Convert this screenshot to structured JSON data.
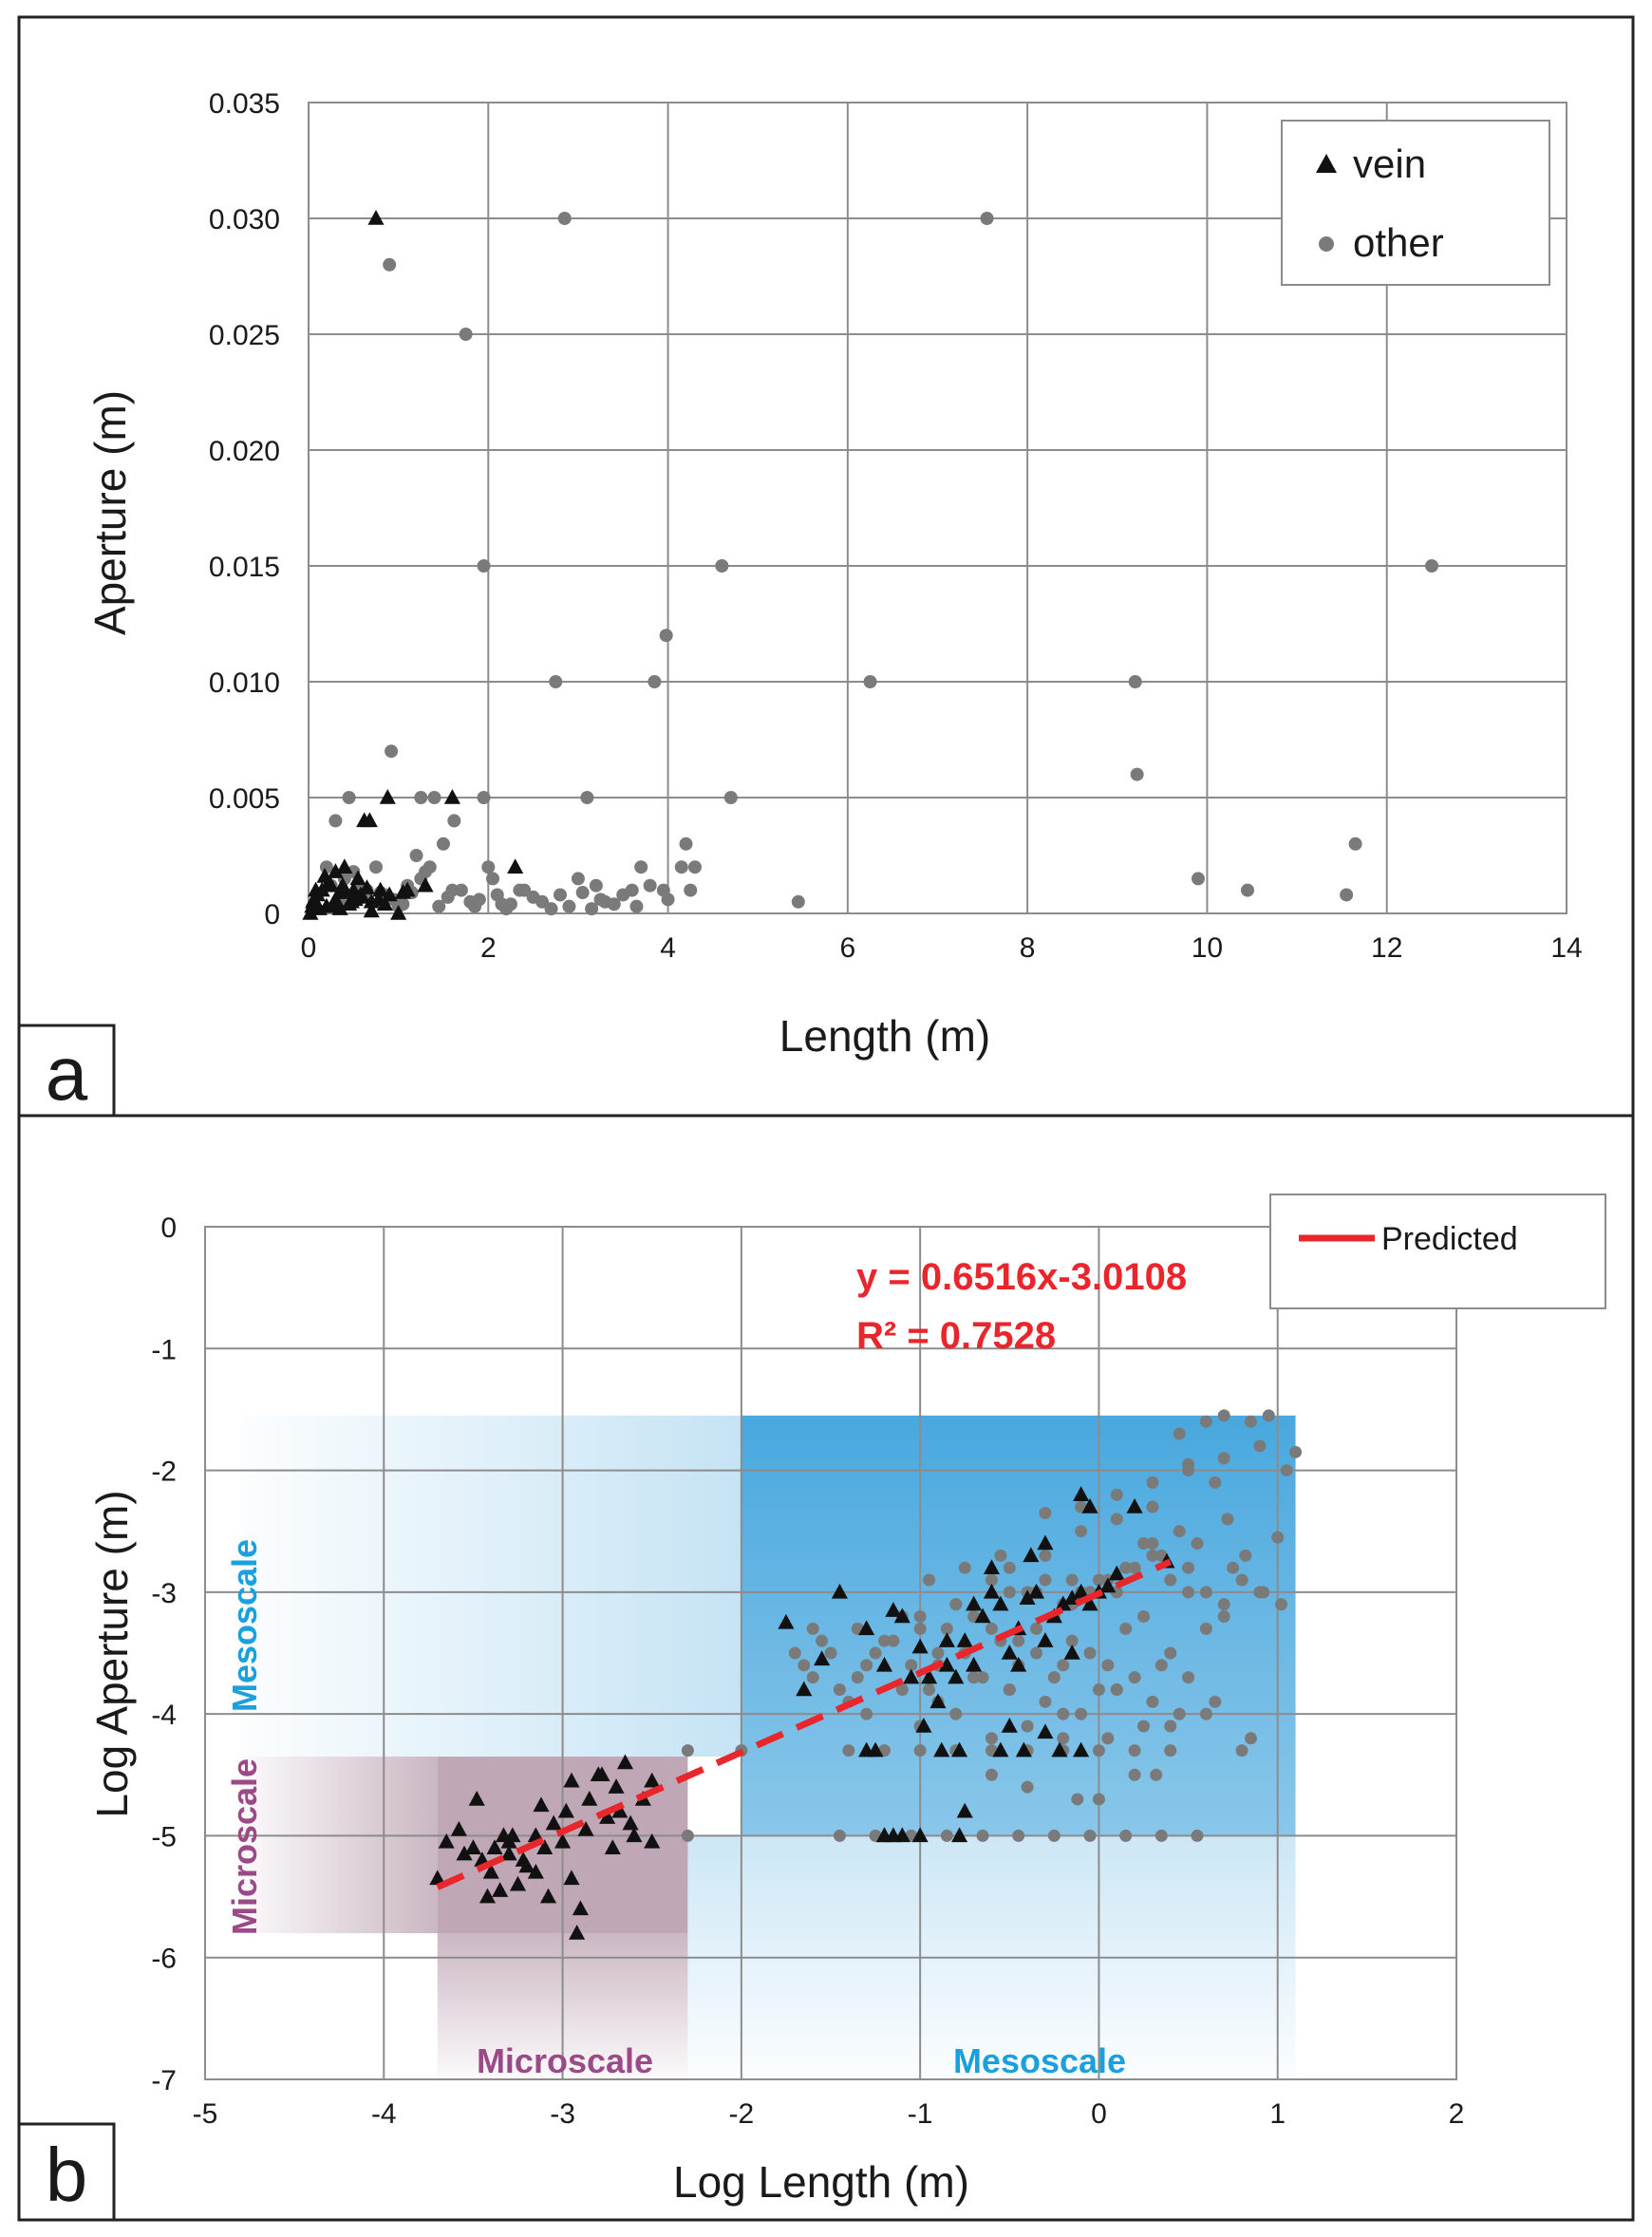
{
  "chart_data": [
    {
      "type": "scatter",
      "panel_label": "a",
      "title": "",
      "xlabel": "Length (m)",
      "ylabel": "Aperture (m)",
      "xlim": [
        0,
        14
      ],
      "ylim": [
        0,
        0.035
      ],
      "xticks": [
        "0",
        "2",
        "4",
        "6",
        "8",
        "10",
        "12",
        "14"
      ],
      "yticks": [
        "0",
        "0.005",
        "0.010",
        "0.015",
        "0.020",
        "0.025",
        "0.030",
        "0.035"
      ],
      "grid": true,
      "legend_position": "top-right",
      "series": [
        {
          "name": "vein",
          "marker": "triangle",
          "color": "#111111",
          "x": [
            0.75,
            0.88,
            0.62,
            0.68,
            1.6,
            2.3,
            0.05,
            0.1,
            0.15,
            0.2,
            0.25,
            0.3,
            0.35,
            0.4,
            0.45,
            0.5,
            0.55,
            0.6,
            0.65,
            0.7,
            0.8,
            0.9,
            1.0,
            0.12,
            0.22,
            0.32,
            0.42,
            0.52,
            0.18,
            0.28,
            0.38,
            0.48,
            0.58,
            0.08,
            0.78,
            1.1,
            1.3,
            0.3,
            0.85,
            1.05,
            0.02,
            0.04,
            0.06,
            0.35,
            0.7
          ],
          "y": [
            0.03,
            0.005,
            0.004,
            0.004,
            0.005,
            0.002,
            0.0005,
            0.0008,
            0.001,
            0.0003,
            0.0012,
            0.0006,
            0.0009,
            0.002,
            0.0004,
            0.001,
            0.0015,
            0.0007,
            0.0011,
            0.0005,
            0.001,
            0.0008,
            0.0,
            0.0002,
            0.0013,
            0.0004,
            0.0009,
            0.0006,
            0.0016,
            0.0003,
            0.0012,
            0.0005,
            0.0008,
            0.001,
            0.0006,
            0.001,
            0.0012,
            0.0018,
            0.0004,
            0.0009,
            0.0,
            0.0003,
            0.0006,
            0.0002,
            0.0001
          ]
        },
        {
          "name": "other",
          "marker": "circle",
          "color": "#7a7a7a",
          "x": [
            0.9,
            1.75,
            2.85,
            7.55,
            1.95,
            4.6,
            3.98,
            2.75,
            3.85,
            6.25,
            9.2,
            9.22,
            12.5,
            0.92,
            0.45,
            1.25,
            1.4,
            1.95,
            3.1,
            4.7,
            1.62,
            0.3,
            11.65,
            4.2,
            4.3,
            4.15,
            3.95,
            9.9,
            10.45,
            11.55,
            5.45,
            3.7,
            3.6,
            3.3,
            3.2,
            3.0,
            2.8,
            2.6,
            2.4,
            2.2,
            2.1,
            2.0,
            1.85,
            1.5,
            1.3,
            1.2,
            1.1,
            0.95,
            1.05,
            1.15,
            1.35,
            1.45,
            1.55,
            1.7,
            1.8,
            2.05,
            2.25,
            2.35,
            2.5,
            2.7,
            2.9,
            3.05,
            3.15,
            3.25,
            3.4,
            3.5,
            3.65,
            3.8,
            4.0,
            4.25,
            0.2,
            0.4,
            0.55,
            0.65,
            0.75,
            0.85,
            0.35,
            0.5,
            1.0,
            1.25,
            1.6,
            1.9,
            2.15,
            0.25,
            0.6,
            0.8
          ],
          "y": [
            0.028,
            0.025,
            0.03,
            0.03,
            0.015,
            0.015,
            0.012,
            0.01,
            0.01,
            0.01,
            0.01,
            0.006,
            0.015,
            0.007,
            0.005,
            0.005,
            0.005,
            0.005,
            0.005,
            0.005,
            0.004,
            0.004,
            0.003,
            0.003,
            0.002,
            0.002,
            0.001,
            0.0015,
            0.001,
            0.0008,
            0.0005,
            0.002,
            0.001,
            0.0005,
            0.0012,
            0.0015,
            0.0008,
            0.0005,
            0.001,
            0.0002,
            0.0008,
            0.002,
            0.0003,
            0.003,
            0.0018,
            0.0025,
            0.0012,
            0.0006,
            0.0004,
            0.0009,
            0.002,
            0.0003,
            0.0007,
            0.001,
            0.0005,
            0.0015,
            0.0004,
            0.001,
            0.0007,
            0.0002,
            0.0003,
            0.0009,
            0.0002,
            0.0006,
            0.0004,
            0.0008,
            0.0003,
            0.0012,
            0.0006,
            0.001,
            0.002,
            0.0015,
            0.0012,
            0.001,
            0.002,
            0.0008,
            0.0005,
            0.0018,
            0.0003,
            0.0015,
            0.001,
            0.0006,
            0.0004,
            0.0012,
            0.0007,
            0.0009
          ]
        }
      ]
    },
    {
      "type": "scatter",
      "panel_label": "b",
      "title": "",
      "xlabel": "Log Length (m)",
      "ylabel": "Log Aperture (m)",
      "xlim": [
        -5,
        2
      ],
      "ylim": [
        -7,
        0
      ],
      "xticks": [
        "-5",
        "-4",
        "-3",
        "-2",
        "-1",
        "0",
        "1",
        "2"
      ],
      "yticks": [
        "-7",
        "-6",
        "-5",
        "-4",
        "-3",
        "-2",
        "-1",
        "0"
      ],
      "grid": true,
      "legend_position": "top-right",
      "legend": [
        "Predicted"
      ],
      "trendline": {
        "name": "Predicted",
        "slope": 0.6516,
        "intercept": -3.0108,
        "x_range": [
          -3.7,
          0.4
        ],
        "color": "#e8262b",
        "equation_label": "y = 0.6516x-3.0108",
        "r2_label": "R² = 0.7528"
      },
      "zones": [
        {
          "name": "Microscale",
          "x_range": [
            -4.8,
            -2.3
          ],
          "y_range": [
            -5.8,
            -4.35
          ],
          "color": "#8a5f7a"
        },
        {
          "name": "Microscale",
          "x_range": [
            -3.7,
            -2.3
          ],
          "y_range": [
            -7,
            -4.35
          ],
          "color": "#8a5f7a"
        },
        {
          "name": "Mesoscale",
          "x_range": [
            -4.8,
            1.1
          ],
          "y_range": [
            -7,
            -1.55
          ],
          "color": "#4aa8de"
        }
      ],
      "zone_labels": {
        "micro_bottom": "Microscale",
        "meso_bottom": "Mesoscale",
        "micro_side": "Microscale",
        "meso_side": "Mesoscale"
      },
      "series": [
        {
          "name": "vein",
          "marker": "triangle",
          "color": "#111111",
          "x": [
            -3.7,
            -3.65,
            -3.58,
            -3.5,
            -3.45,
            -3.4,
            -3.38,
            -3.33,
            -3.3,
            -3.25,
            -3.2,
            -3.15,
            -3.1,
            -3.05,
            -3.0,
            -2.98,
            -2.95,
            -2.9,
            -2.87,
            -2.85,
            -2.8,
            -2.75,
            -2.7,
            -2.65,
            -2.62,
            -2.6,
            -2.55,
            -2.5,
            -3.42,
            -3.35,
            -3.28,
            -3.22,
            -3.12,
            -3.08,
            -2.92,
            -2.78,
            -2.72,
            -3.55,
            -3.48,
            -2.95,
            -3.3,
            -3.15,
            -2.5,
            -2.68,
            -1.75,
            -1.65,
            -1.55,
            -1.45,
            -1.3,
            -1.2,
            -1.15,
            -1.1,
            -1.05,
            -1.0,
            -0.95,
            -0.9,
            -0.85,
            -0.8,
            -0.75,
            -0.7,
            -0.65,
            -0.6,
            -0.55,
            -0.5,
            -0.45,
            -0.4,
            -0.35,
            -0.3,
            -0.25,
            -0.2,
            -0.15,
            -0.1,
            -0.05,
            0.0,
            0.05,
            0.1,
            -1.25,
            -0.98,
            -0.88,
            -0.78,
            -0.55,
            -0.42,
            -0.22,
            -0.1,
            -1.2,
            -1.15,
            -1.0,
            -0.78,
            -0.75,
            -0.5,
            -0.3,
            -1.3,
            -1.2,
            -1.1,
            -0.85,
            -0.45,
            -0.15,
            -0.1,
            -0.05,
            0.2,
            0.38,
            -0.3,
            -0.38,
            -0.6,
            -0.7
          ],
          "y": [
            -5.35,
            -5.05,
            -4.95,
            -5.1,
            -5.2,
            -5.3,
            -5.1,
            -5.0,
            -5.15,
            -5.4,
            -5.25,
            -5.0,
            -5.1,
            -4.9,
            -5.05,
            -4.8,
            -5.35,
            -5.6,
            -4.95,
            -4.7,
            -4.5,
            -4.85,
            -4.6,
            -4.4,
            -4.9,
            -5.0,
            -4.7,
            -4.55,
            -5.5,
            -5.45,
            -5.0,
            -5.2,
            -4.75,
            -5.5,
            -5.8,
            -4.5,
            -5.1,
            -5.15,
            -4.7,
            -4.55,
            -5.05,
            -5.3,
            -5.05,
            -4.8,
            -3.25,
            -3.8,
            -3.55,
            -3.0,
            -3.3,
            -3.6,
            -3.15,
            -3.2,
            -3.7,
            -3.45,
            -3.7,
            -3.9,
            -3.6,
            -3.7,
            -3.4,
            -3.6,
            -3.2,
            -3.0,
            -3.1,
            -3.5,
            -3.3,
            -3.05,
            -3.0,
            -3.4,
            -3.2,
            -3.1,
            -3.05,
            -3.0,
            -3.1,
            -3.0,
            -2.95,
            -2.85,
            -4.3,
            -4.1,
            -4.3,
            -4.3,
            -4.3,
            -4.3,
            -4.3,
            -4.3,
            -5.0,
            -5.0,
            -5.0,
            -5.0,
            -4.8,
            -4.1,
            -4.15,
            -4.3,
            -5.0,
            -5.0,
            -3.4,
            -3.6,
            -3.5,
            -2.2,
            -2.3,
            -2.3,
            -2.75,
            -2.6,
            -2.7,
            -2.8,
            -3.1
          ]
        },
        {
          "name": "other",
          "marker": "circle",
          "color": "#7a7a7a",
          "x": [
            -2.3,
            -2.0,
            -1.6,
            -1.5,
            -1.4,
            -1.3,
            -1.2,
            -1.1,
            -1.0,
            -0.9,
            -0.8,
            -0.7,
            -0.6,
            -0.5,
            -0.4,
            -0.3,
            -0.2,
            -0.1,
            0.0,
            0.1,
            0.2,
            0.3,
            0.4,
            0.5,
            0.6,
            0.7,
            -1.35,
            -1.25,
            -1.15,
            -1.05,
            -0.95,
            -0.85,
            -0.75,
            -0.65,
            -0.55,
            -0.45,
            -0.35,
            -0.25,
            -0.15,
            -0.05,
            0.05,
            0.15,
            0.25,
            0.35,
            -1.3,
            -1.1,
            -0.9,
            -0.7,
            -0.5,
            -0.3,
            -0.1,
            0.1,
            0.3,
            0.5,
            -1.4,
            -1.2,
            -1.0,
            -0.8,
            -0.6,
            -0.4,
            -0.2,
            0.0,
            0.2,
            0.4,
            -1.45,
            -1.25,
            -1.05,
            -0.85,
            -0.65,
            -0.45,
            -0.25,
            -0.05,
            0.15,
            0.35,
            0.55,
            -0.6,
            -0.4,
            -0.2,
            0.0,
            0.2,
            0.4,
            0.6,
            0.8,
            -1.0,
            -0.8,
            -0.6,
            -0.3,
            -0.1,
            0.1,
            0.3,
            -0.5,
            -0.3,
            -0.1,
            0.1,
            0.3,
            0.5,
            0.7,
            0.9,
            0.45,
            0.6,
            0.7,
            0.85,
            0.95,
            1.1,
            1.05,
            1.0,
            0.9,
            0.8,
            0.75,
            0.55,
            0.45,
            0.35,
            0.25,
            0.15,
            0.05,
            -0.05,
            -0.15,
            -0.25,
            -0.35,
            -0.45,
            0.3,
            0.5,
            0.65,
            0.72,
            0.82,
            0.92,
            1.02,
            -0.9,
            -0.7,
            -0.5,
            -0.2,
            0.0,
            0.2,
            0.4,
            0.6,
            -1.0,
            -0.8,
            -0.6,
            -0.4,
            -0.2,
            0.05,
            0.25,
            0.45,
            0.65,
            0.85,
            -1.65,
            -1.55,
            -1.45,
            -1.35,
            -1.6,
            -1.7,
            -0.95,
            -0.75,
            -0.55,
            -0.35,
            -0.15,
            0.1,
            -0.12,
            0.32,
            0.5,
            0.7,
            -2.3
          ],
          "y": [
            -4.3,
            -4.3,
            -3.7,
            -3.5,
            -3.9,
            -3.6,
            -3.4,
            -3.2,
            -3.3,
            -3.5,
            -3.1,
            -3.2,
            -3.3,
            -3.0,
            -3.0,
            -2.9,
            -3.1,
            -3.0,
            -2.9,
            -3.0,
            -2.8,
            -2.7,
            -2.9,
            -2.8,
            -3.0,
            -3.1,
            -3.3,
            -3.5,
            -3.4,
            -3.6,
            -3.8,
            -3.3,
            -3.5,
            -3.7,
            -3.4,
            -3.6,
            -3.5,
            -3.7,
            -3.4,
            -3.5,
            -3.6,
            -3.3,
            -3.2,
            -3.6,
            -4.0,
            -3.8,
            -3.9,
            -3.7,
            -3.8,
            -3.9,
            -4.0,
            -3.8,
            -3.9,
            -3.7,
            -4.3,
            -4.3,
            -4.3,
            -4.3,
            -4.3,
            -4.3,
            -4.3,
            -4.3,
            -4.3,
            -4.3,
            -5.0,
            -5.0,
            -5.0,
            -5.0,
            -5.0,
            -5.0,
            -5.0,
            -5.0,
            -5.0,
            -5.0,
            -5.0,
            -4.5,
            -4.6,
            -4.2,
            -4.7,
            -4.5,
            -4.1,
            -4.0,
            -4.3,
            -3.2,
            -3.1,
            -2.9,
            -2.7,
            -2.5,
            -2.4,
            -2.6,
            -2.8,
            -2.35,
            -2.3,
            -2.2,
            -2.1,
            -2.0,
            -1.9,
            -1.8,
            -1.7,
            -1.6,
            -1.55,
            -1.6,
            -1.55,
            -1.85,
            -2.0,
            -2.55,
            -3.0,
            -2.9,
            -2.8,
            -2.6,
            -2.5,
            -2.7,
            -2.6,
            -2.8,
            -2.9,
            -3.0,
            -3.1,
            -3.2,
            -3.3,
            -3.4,
            -2.3,
            -1.95,
            -2.1,
            -2.4,
            -2.7,
            -3.0,
            -3.1,
            -3.6,
            -3.7,
            -3.8,
            -3.6,
            -3.8,
            -3.7,
            -3.5,
            -3.3,
            -4.1,
            -4.0,
            -4.2,
            -4.1,
            -4.0,
            -4.2,
            -4.1,
            -4.0,
            -3.9,
            -4.2,
            -3.6,
            -3.4,
            -3.8,
            -3.7,
            -3.3,
            -3.5,
            -2.9,
            -2.8,
            -2.7,
            -3.0,
            -2.9,
            -3.8,
            -4.7,
            -4.5,
            -3.0,
            -3.2,
            -5.0
          ]
        }
      ]
    }
  ]
}
